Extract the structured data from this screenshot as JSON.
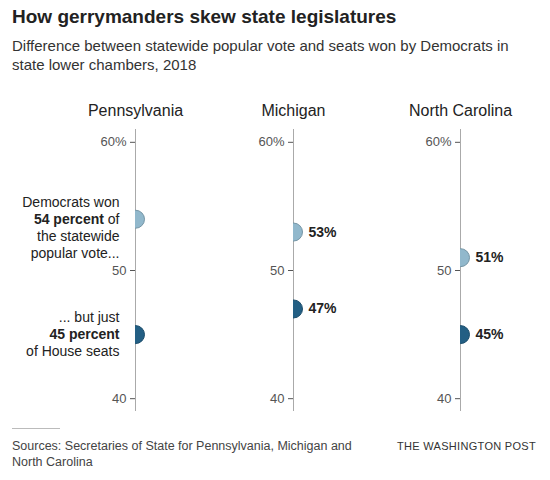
{
  "chart_data": {
    "type": "dot",
    "title": "How gerrymanders skew state legislatures",
    "subtitle": "Difference between statewide popular vote and seats won by Democrats in state lower chambers, 2018",
    "source": "Sources: Secretaries of State for Pennsylvania, Michigan and North Carolina",
    "credit": "THE WASHINGTON POST",
    "ylim": [
      39,
      61
    ],
    "yticks": [
      40,
      50,
      {
        "value": 60,
        "label": "60%"
      }
    ],
    "colors": [
      "#91b8cc",
      "#235f84"
    ],
    "panels": [
      {
        "title": "Pennsylvania",
        "values": [
          54,
          45
        ],
        "data_labels": false,
        "annotations": [
          {
            "value": 54,
            "lines": [
              "Democrats won",
              "54 percent of",
              "the statewide",
              "popular vote..."
            ],
            "bold": "54 percent"
          },
          {
            "value": 45,
            "lines": [
              "... but just",
              "45 percent",
              "of House seats"
            ],
            "bold": "45 percent"
          }
        ]
      },
      {
        "title": "Michigan",
        "values": [
          53,
          47
        ],
        "data_labels": true,
        "value_labels": [
          "53%",
          "47%"
        ]
      },
      {
        "title": "North Carolina",
        "values": [
          51,
          45
        ],
        "data_labels": true,
        "value_labels": [
          "51%",
          "45%"
        ]
      }
    ]
  }
}
